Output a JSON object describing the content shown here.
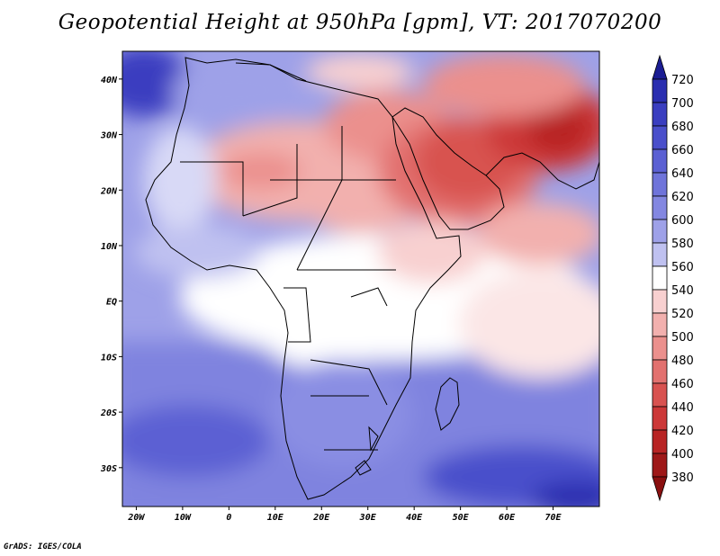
{
  "title": "Geopotential Height at 950hPa [gpm], VT: 2017070200",
  "footer": "GrADS: IGES/COLA",
  "map": {
    "lon_range": [
      -23,
      80
    ],
    "lat_range": [
      -37,
      45
    ],
    "lat_labels": [
      {
        "lat": 40,
        "label": "40N"
      },
      {
        "lat": 30,
        "label": "30N"
      },
      {
        "lat": 20,
        "label": "20N"
      },
      {
        "lat": 10,
        "label": "10N"
      },
      {
        "lat": 0,
        "label": "EQ"
      },
      {
        "lat": -10,
        "label": "10S"
      },
      {
        "lat": -20,
        "label": "20S"
      },
      {
        "lat": -30,
        "label": "30S"
      }
    ],
    "lon_labels": [
      {
        "lon": -20,
        "label": "20W"
      },
      {
        "lon": -10,
        "label": "10W"
      },
      {
        "lon": 0,
        "label": "0"
      },
      {
        "lon": 10,
        "label": "10E"
      },
      {
        "lon": 20,
        "label": "20E"
      },
      {
        "lon": 30,
        "label": "30E"
      },
      {
        "lon": 40,
        "label": "40E"
      },
      {
        "lon": 50,
        "label": "50E"
      },
      {
        "lon": 60,
        "label": "60E"
      },
      {
        "lon": 70,
        "label": "70E"
      }
    ]
  },
  "colorbar": {
    "levels": [
      720,
      700,
      680,
      660,
      640,
      620,
      600,
      580,
      560,
      540,
      520,
      500,
      480,
      460,
      440,
      420,
      400,
      380
    ],
    "colors": [
      "#1b1d93",
      "#2a2eb0",
      "#3a3ec0",
      "#4a4fcb",
      "#5b60d3",
      "#6f74da",
      "#8387e1",
      "#9ea1e8",
      "#bfc1f0",
      "#ffffff",
      "#f8d0d0",
      "#f2b0ae",
      "#eb908d",
      "#e2716f",
      "#d85250",
      "#cc3838",
      "#b82424",
      "#9e1818",
      "#8a1010"
    ]
  },
  "colors": {
    "ocean_south": "#5b60d3",
    "africa_north": "#f2b0ae",
    "arabia": "#d85250"
  }
}
